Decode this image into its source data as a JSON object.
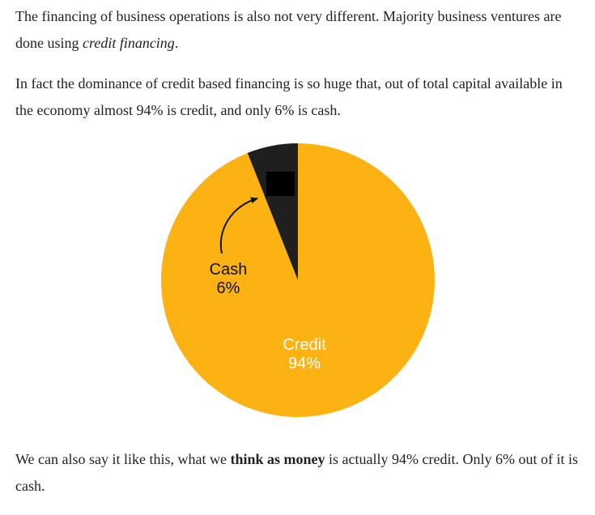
{
  "article": {
    "p1": {
      "text1": "The financing of business operations is also not very different. Majority business ventures are done using ",
      "em1": "credit financing",
      "text2": "."
    },
    "p2": {
      "text1": "In fact the dominance of credit based financing is so huge that, out of total capital available in the economy almost 94% is credit, and only 6% is cash."
    },
    "p3": {
      "text1": "We can also say it like this, what we ",
      "strong1": "think as money",
      "text2": " is actually 94% credit. Only 6% out of it is cash."
    }
  },
  "chart_data": {
    "type": "pie",
    "title": "",
    "start_angle": "12 o'clock",
    "direction": "clockwise",
    "slices": [
      {
        "label": "Credit",
        "value": 94,
        "value_label": "94%",
        "color": "#FDB213",
        "label_color": "#ffffff"
      },
      {
        "label": "Cash",
        "value": 6,
        "value_label": "6%",
        "color": "#1F1F1F",
        "label_color": "#111111"
      }
    ]
  }
}
